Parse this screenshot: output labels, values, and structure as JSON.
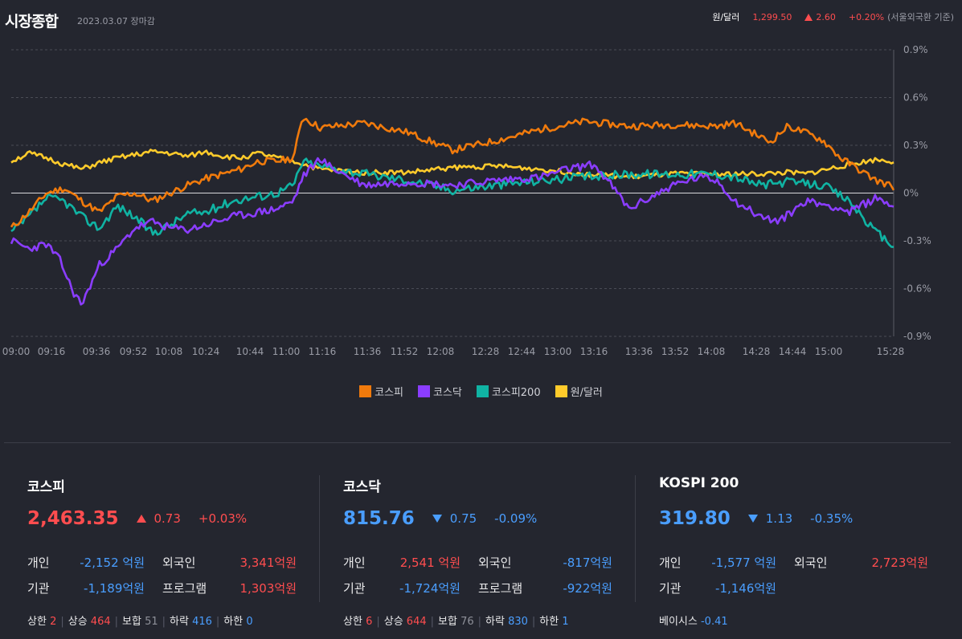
{
  "header": {
    "title": "시장종합",
    "date": "2023.03.07 장마감",
    "fx_label": "원/달러",
    "fx_value": "1,299.50",
    "fx_change": "2.60",
    "fx_pct": "+0.20%",
    "fx_note": "(서울외국환 기준)"
  },
  "colors": {
    "kospi": "#f07a0c",
    "kosdaq": "#8b3dff",
    "kospi200": "#10b3a3",
    "usdkrw": "#ffcb2b",
    "up": "#ff4d4f",
    "down": "#4a9eff"
  },
  "chart_data": {
    "type": "line",
    "y_ticks": [
      "0.9%",
      "0.6%",
      "0.3%",
      "0%",
      "-0.3%",
      "-0.6%",
      "-0.9%"
    ],
    "ylim": [
      -0.9,
      0.9
    ],
    "x_ticks": [
      "09:00",
      "09:16",
      "09:36",
      "09:52",
      "10:08",
      "10:24",
      "10:44",
      "11:00",
      "11:16",
      "11:36",
      "11:52",
      "12:08",
      "12:28",
      "12:44",
      "13:00",
      "13:16",
      "13:36",
      "13:52",
      "14:08",
      "14:28",
      "14:44",
      "15:00",
      "15:28"
    ],
    "series": [
      {
        "name": "코스피",
        "key": "kospi",
        "x_frac": [
          0,
          0.02,
          0.04,
          0.06,
          0.08,
          0.1,
          0.12,
          0.14,
          0.16,
          0.18,
          0.2,
          0.22,
          0.24,
          0.26,
          0.28,
          0.3,
          0.32,
          0.325,
          0.33,
          0.35,
          0.4,
          0.45,
          0.5,
          0.55,
          0.6,
          0.65,
          0.7,
          0.75,
          0.8,
          0.82,
          0.84,
          0.86,
          0.88,
          0.9,
          0.92,
          0.94,
          0.96,
          0.98,
          1.0
        ],
        "values": [
          -0.22,
          -0.12,
          0.0,
          0.03,
          -0.05,
          -0.12,
          -0.02,
          0.0,
          -0.05,
          0.0,
          0.05,
          0.09,
          0.12,
          0.15,
          0.2,
          0.2,
          0.22,
          0.35,
          0.48,
          0.41,
          0.44,
          0.38,
          0.27,
          0.33,
          0.4,
          0.45,
          0.42,
          0.43,
          0.42,
          0.44,
          0.38,
          0.32,
          0.42,
          0.38,
          0.33,
          0.22,
          0.15,
          0.08,
          0.04
        ]
      },
      {
        "name": "코스닥",
        "key": "kosdaq",
        "x_frac": [
          0,
          0.02,
          0.04,
          0.055,
          0.07,
          0.08,
          0.1,
          0.12,
          0.14,
          0.16,
          0.18,
          0.2,
          0.22,
          0.25,
          0.28,
          0.3,
          0.32,
          0.33,
          0.35,
          0.36,
          0.4,
          0.45,
          0.5,
          0.55,
          0.6,
          0.63,
          0.66,
          0.68,
          0.7,
          0.75,
          0.78,
          0.8,
          0.82,
          0.85,
          0.87,
          0.9,
          0.93,
          0.95,
          0.98,
          1.0
        ],
        "values": [
          -0.3,
          -0.35,
          -0.32,
          -0.42,
          -0.62,
          -0.7,
          -0.45,
          -0.35,
          -0.22,
          -0.18,
          -0.22,
          -0.23,
          -0.2,
          -0.15,
          -0.12,
          -0.1,
          -0.05,
          0.1,
          0.22,
          0.17,
          0.05,
          0.07,
          0.05,
          0.08,
          0.1,
          0.15,
          0.18,
          0.05,
          -0.1,
          0.05,
          0.1,
          0.08,
          -0.05,
          -0.15,
          -0.18,
          -0.05,
          -0.08,
          -0.12,
          -0.03,
          -0.08
        ]
      },
      {
        "name": "코스피200",
        "key": "kospi200",
        "x_frac": [
          0,
          0.02,
          0.04,
          0.06,
          0.08,
          0.1,
          0.12,
          0.14,
          0.16,
          0.18,
          0.2,
          0.22,
          0.25,
          0.28,
          0.3,
          0.32,
          0.33,
          0.35,
          0.4,
          0.45,
          0.5,
          0.55,
          0.6,
          0.65,
          0.7,
          0.75,
          0.8,
          0.82,
          0.85,
          0.88,
          0.9,
          0.92,
          0.95,
          0.98,
          1.0
        ],
        "values": [
          -0.25,
          -0.15,
          -0.03,
          -0.05,
          -0.15,
          -0.22,
          -0.08,
          -0.15,
          -0.25,
          -0.2,
          -0.13,
          -0.12,
          -0.05,
          -0.02,
          0.0,
          0.05,
          0.2,
          0.17,
          0.12,
          0.08,
          0.02,
          0.05,
          0.08,
          0.1,
          0.12,
          0.12,
          0.12,
          0.1,
          0.05,
          0.07,
          0.06,
          0.05,
          -0.05,
          -0.25,
          -0.33
        ]
      },
      {
        "name": "원/달러",
        "key": "usdkrw",
        "x_frac": [
          0,
          0.02,
          0.04,
          0.06,
          0.08,
          0.1,
          0.12,
          0.14,
          0.16,
          0.18,
          0.2,
          0.22,
          0.24,
          0.26,
          0.28,
          0.3,
          0.32,
          0.35,
          0.4,
          0.45,
          0.5,
          0.55,
          0.6,
          0.65,
          0.7,
          0.75,
          0.8,
          0.85,
          0.88,
          0.9,
          0.95,
          0.98,
          1.0
        ],
        "values": [
          0.2,
          0.25,
          0.22,
          0.18,
          0.15,
          0.19,
          0.22,
          0.24,
          0.26,
          0.25,
          0.23,
          0.26,
          0.23,
          0.22,
          0.25,
          0.22,
          0.2,
          0.15,
          0.13,
          0.13,
          0.16,
          0.17,
          0.15,
          0.12,
          0.1,
          0.12,
          0.12,
          0.12,
          0.13,
          0.12,
          0.18,
          0.21,
          0.2
        ]
      }
    ]
  },
  "panels": [
    {
      "name": "코스피",
      "value": "2,463.35",
      "dir": "up",
      "change": "0.73",
      "pct": "+0.03%",
      "r1": [
        "개인",
        "-2,152 억원",
        "외국인",
        "3,341억원"
      ],
      "r2": [
        "기관",
        "-1,189억원",
        "프로그램",
        "1,303억원"
      ],
      "stats": [
        [
          "상한",
          "2"
        ],
        [
          "상승",
          "464"
        ],
        [
          "보합",
          "51"
        ],
        [
          "하락",
          "416"
        ],
        [
          "하한",
          "0"
        ]
      ]
    },
    {
      "name": "코스닥",
      "value": "815.76",
      "dir": "down",
      "change": "0.75",
      "pct": "-0.09%",
      "r1": [
        "개인",
        "2,541 억원",
        "외국인",
        "-817억원"
      ],
      "r2": [
        "기관",
        "-1,724억원",
        "프로그램",
        "-922억원"
      ],
      "stats": [
        [
          "상한",
          "6"
        ],
        [
          "상승",
          "644"
        ],
        [
          "보합",
          "76"
        ],
        [
          "하락",
          "830"
        ],
        [
          "하한",
          "1"
        ]
      ]
    },
    {
      "name": "KOSPI 200",
      "value": "319.80",
      "dir": "down",
      "change": "1.13",
      "pct": "-0.35%",
      "r1": [
        "개인",
        "-1,577 억원",
        "외국인",
        "2,723억원"
      ],
      "r2": [
        "기관",
        "-1,146억원",
        "",
        ""
      ],
      "basis_label": "베이시스",
      "basis_value": "-0.41"
    }
  ]
}
